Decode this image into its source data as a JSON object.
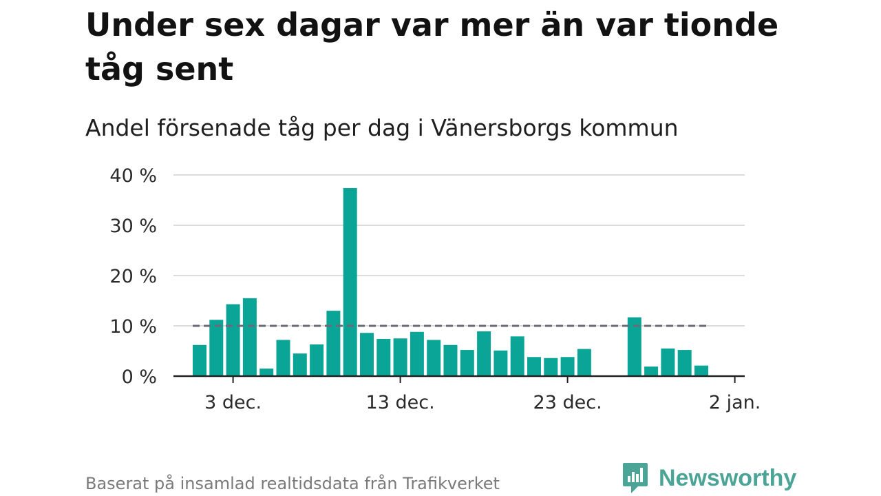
{
  "title": "Under sex dagar var mer än var tionde tåg sent",
  "subtitle": "Andel försenade tåg per dag i Vänersborgs kommun",
  "footer": "Baserat på insamlad realtidsdata från Trafikverket",
  "brand": {
    "name": "Newsworthy",
    "icon": "newsworthy-logo-icon",
    "color": "#4aa597"
  },
  "colors": {
    "bar": "#0aa596",
    "reference_line": "#6b6b78",
    "grid": "#dcdcdc",
    "axis": "#222222"
  },
  "chart_data": {
    "type": "bar",
    "title": "Under sex dagar var mer än var tionde tåg sent",
    "subtitle": "Andel försenade tåg per dag i Vänersborgs kommun",
    "unit": "%",
    "x_start_date": "2023-11-30",
    "x": [
      "2023-12-01",
      "2023-12-02",
      "2023-12-03",
      "2023-12-04",
      "2023-12-05",
      "2023-12-06",
      "2023-12-07",
      "2023-12-08",
      "2023-12-09",
      "2023-12-10",
      "2023-12-11",
      "2023-12-12",
      "2023-12-13",
      "2023-12-14",
      "2023-12-15",
      "2023-12-16",
      "2023-12-17",
      "2023-12-18",
      "2023-12-19",
      "2023-12-20",
      "2023-12-21",
      "2023-12-22",
      "2023-12-23",
      "2023-12-24",
      "2023-12-25",
      "2023-12-26",
      "2023-12-27",
      "2023-12-28",
      "2023-12-29",
      "2023-12-30",
      "2023-12-31"
    ],
    "values": [
      6.2,
      11.2,
      14.3,
      15.5,
      1.5,
      7.2,
      4.5,
      6.3,
      13.0,
      37.4,
      8.6,
      7.4,
      7.5,
      8.8,
      7.2,
      6.2,
      5.2,
      8.9,
      5.1,
      7.9,
      3.8,
      3.6,
      3.8,
      5.4,
      null,
      null,
      11.7,
      1.9,
      5.5,
      5.2,
      2.1
    ],
    "reference_line": {
      "value": 10
    },
    "ylim": [
      0,
      40
    ],
    "yticks": [
      {
        "value": 0,
        "label": "0 %"
      },
      {
        "value": 10,
        "label": "10 %"
      },
      {
        "value": 20,
        "label": "20 %"
      },
      {
        "value": 30,
        "label": "30 %"
      },
      {
        "value": 40,
        "label": "40 %"
      }
    ],
    "xticks": [
      {
        "date": "2023-12-03",
        "label": "3 dec."
      },
      {
        "date": "2023-12-13",
        "label": "13 dec."
      },
      {
        "date": "2023-12-23",
        "label": "23 dec."
      },
      {
        "date": "2024-01-02",
        "label": "2 jan."
      }
    ],
    "grid": true,
    "legend": "none"
  }
}
